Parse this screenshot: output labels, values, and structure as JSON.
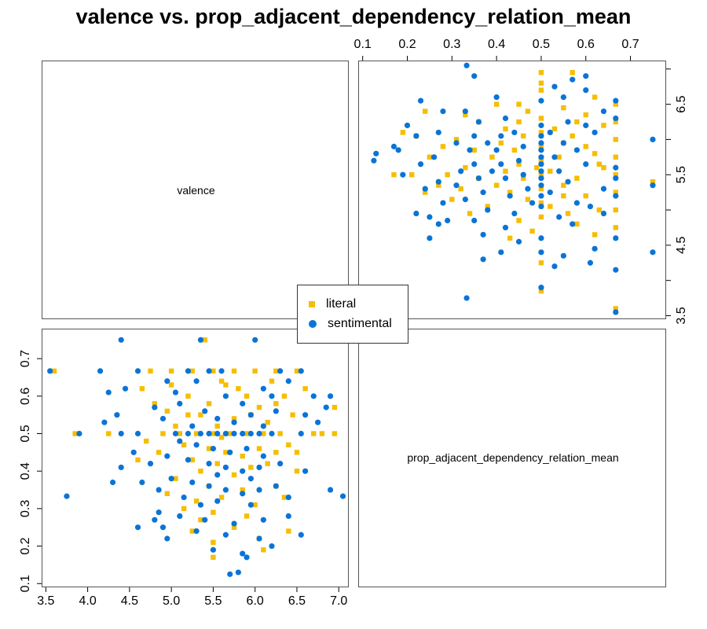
{
  "title": "valence vs. prop_adjacent_dependency_relation_mean",
  "colors": {
    "literal": "#F5BE00",
    "sentimental": "#0A74D6",
    "frame": "#555555"
  },
  "chart_data": {
    "type": "scatter",
    "title": "valence vs. prop_adjacent_dependency_relation_mean",
    "variables": [
      "valence",
      "prop_adjacent_dependency_relation_mean"
    ],
    "valence_axis": {
      "range": [
        3.45,
        7.12
      ],
      "ticks": [
        3.5,
        4.0,
        4.5,
        5.0,
        5.5,
        6.0,
        6.5,
        7.0
      ],
      "tick_labels": [
        "3.5",
        "4.0",
        "4.5",
        "5.0",
        "5.5",
        "6.0",
        "6.5",
        "7.0"
      ]
    },
    "prop_axis": {
      "range": [
        0.09,
        0.78
      ],
      "ticks": [
        0.1,
        0.2,
        0.3,
        0.4,
        0.5,
        0.6,
        0.7
      ],
      "tick_labels": [
        "0.1",
        "0.2",
        "0.3",
        "0.4",
        "0.5",
        "0.6",
        "0.7"
      ]
    },
    "upper_panel_valence_ticks": {
      "ticks": [
        3.5,
        4.5,
        5.5,
        6.5
      ],
      "tick_labels": [
        "3.5",
        "4.5",
        "5.5",
        "6.5"
      ]
    },
    "legend": {
      "position": "center",
      "entries": [
        "literal",
        "sentimental"
      ]
    },
    "grid": false,
    "series": [
      {
        "name": "literal",
        "marker": "square",
        "points": [
          [
            3.6,
            0.667
          ],
          [
            4.75,
            0.667
          ],
          [
            5.0,
            0.667
          ],
          [
            5.25,
            0.667
          ],
          [
            5.5,
            0.667
          ],
          [
            5.75,
            0.667
          ],
          [
            6.0,
            0.667
          ],
          [
            6.25,
            0.667
          ],
          [
            6.5,
            0.667
          ],
          [
            3.85,
            0.5
          ],
          [
            4.25,
            0.5
          ],
          [
            4.9,
            0.5
          ],
          [
            5.1,
            0.5
          ],
          [
            5.3,
            0.5
          ],
          [
            5.5,
            0.5
          ],
          [
            5.7,
            0.5
          ],
          [
            5.9,
            0.5
          ],
          [
            6.1,
            0.5
          ],
          [
            6.3,
            0.5
          ],
          [
            6.7,
            0.5
          ],
          [
            6.95,
            0.5
          ],
          [
            5.4,
            0.75
          ],
          [
            5.65,
            0.63
          ],
          [
            5.8,
            0.62
          ],
          [
            5.2,
            0.6
          ],
          [
            5.45,
            0.58
          ],
          [
            6.05,
            0.57
          ],
          [
            6.35,
            0.6
          ],
          [
            5.95,
            0.55
          ],
          [
            5.35,
            0.55
          ],
          [
            6.45,
            0.55
          ],
          [
            4.95,
            0.56
          ],
          [
            5.75,
            0.54
          ],
          [
            6.15,
            0.53
          ],
          [
            5.55,
            0.52
          ],
          [
            6.95,
            0.57
          ],
          [
            5.15,
            0.47
          ],
          [
            5.45,
            0.46
          ],
          [
            5.65,
            0.45
          ],
          [
            5.85,
            0.44
          ],
          [
            6.05,
            0.46
          ],
          [
            6.25,
            0.45
          ],
          [
            4.85,
            0.45
          ],
          [
            5.25,
            0.43
          ],
          [
            5.55,
            0.42
          ],
          [
            5.95,
            0.41
          ],
          [
            6.15,
            0.42
          ],
          [
            6.5,
            0.4
          ],
          [
            4.6,
            0.43
          ],
          [
            5.35,
            0.4
          ],
          [
            5.75,
            0.39
          ],
          [
            5.05,
            0.38
          ],
          [
            5.45,
            0.36
          ],
          [
            5.85,
            0.35
          ],
          [
            6.25,
            0.36
          ],
          [
            4.95,
            0.34
          ],
          [
            5.6,
            0.33
          ],
          [
            5.3,
            0.32
          ],
          [
            6.0,
            0.31
          ],
          [
            6.35,
            0.33
          ],
          [
            5.15,
            0.3
          ],
          [
            5.5,
            0.29
          ],
          [
            5.9,
            0.28
          ],
          [
            5.25,
            0.24
          ],
          [
            5.5,
            0.21
          ],
          [
            5.75,
            0.25
          ],
          [
            6.05,
            0.22
          ],
          [
            5.5,
            0.17
          ],
          [
            6.1,
            0.19
          ],
          [
            5.35,
            0.27
          ],
          [
            6.4,
            0.24
          ],
          [
            4.65,
            0.62
          ],
          [
            5.0,
            0.63
          ],
          [
            5.6,
            0.64
          ],
          [
            6.2,
            0.64
          ],
          [
            6.6,
            0.62
          ],
          [
            4.8,
            0.58
          ],
          [
            5.9,
            0.6
          ],
          [
            6.25,
            0.58
          ],
          [
            5.05,
            0.52
          ],
          [
            5.6,
            0.49
          ],
          [
            6.4,
            0.47
          ],
          [
            4.7,
            0.48
          ],
          [
            6.8,
            0.5
          ],
          [
            5.2,
            0.55
          ],
          [
            6.5,
            0.45
          ]
        ]
      },
      {
        "name": "sentimental",
        "marker": "circle",
        "points": [
          [
            3.55,
            0.667
          ],
          [
            4.15,
            0.667
          ],
          [
            4.6,
            0.667
          ],
          [
            5.2,
            0.667
          ],
          [
            5.45,
            0.667
          ],
          [
            5.6,
            0.667
          ],
          [
            6.3,
            0.667
          ],
          [
            6.55,
            0.667
          ],
          [
            6.9,
            0.6
          ],
          [
            3.9,
            0.5
          ],
          [
            4.4,
            0.5
          ],
          [
            4.6,
            0.5
          ],
          [
            5.05,
            0.5
          ],
          [
            5.2,
            0.5
          ],
          [
            5.35,
            0.5
          ],
          [
            5.45,
            0.5
          ],
          [
            5.55,
            0.5
          ],
          [
            5.65,
            0.5
          ],
          [
            5.75,
            0.5
          ],
          [
            5.85,
            0.5
          ],
          [
            5.95,
            0.5
          ],
          [
            6.05,
            0.5
          ],
          [
            6.2,
            0.5
          ],
          [
            6.55,
            0.5
          ],
          [
            4.4,
            0.75
          ],
          [
            5.35,
            0.75
          ],
          [
            6.0,
            0.75
          ],
          [
            4.25,
            0.61
          ],
          [
            4.35,
            0.55
          ],
          [
            4.2,
            0.53
          ],
          [
            4.8,
            0.57
          ],
          [
            6.7,
            0.6
          ],
          [
            6.85,
            0.57
          ],
          [
            3.75,
            0.333
          ],
          [
            7.05,
            0.333
          ],
          [
            4.4,
            0.41
          ],
          [
            6.6,
            0.55
          ],
          [
            5.3,
            0.64
          ],
          [
            5.65,
            0.6
          ],
          [
            5.85,
            0.58
          ],
          [
            6.1,
            0.62
          ],
          [
            5.1,
            0.58
          ],
          [
            5.4,
            0.56
          ],
          [
            5.95,
            0.55
          ],
          [
            6.25,
            0.56
          ],
          [
            4.9,
            0.54
          ],
          [
            5.55,
            0.54
          ],
          [
            5.75,
            0.53
          ],
          [
            6.1,
            0.52
          ],
          [
            5.25,
            0.52
          ],
          [
            5.1,
            0.48
          ],
          [
            5.3,
            0.47
          ],
          [
            5.5,
            0.46
          ],
          [
            5.7,
            0.45
          ],
          [
            5.9,
            0.46
          ],
          [
            6.1,
            0.44
          ],
          [
            4.95,
            0.44
          ],
          [
            5.2,
            0.43
          ],
          [
            5.45,
            0.42
          ],
          [
            5.65,
            0.41
          ],
          [
            5.85,
            0.4
          ],
          [
            6.05,
            0.41
          ],
          [
            6.3,
            0.42
          ],
          [
            4.75,
            0.42
          ],
          [
            5.55,
            0.39
          ],
          [
            5.95,
            0.38
          ],
          [
            5.0,
            0.38
          ],
          [
            5.25,
            0.37
          ],
          [
            5.45,
            0.36
          ],
          [
            5.65,
            0.35
          ],
          [
            5.85,
            0.34
          ],
          [
            6.05,
            0.35
          ],
          [
            6.25,
            0.36
          ],
          [
            4.85,
            0.35
          ],
          [
            4.65,
            0.37
          ],
          [
            5.15,
            0.33
          ],
          [
            5.55,
            0.32
          ],
          [
            5.95,
            0.31
          ],
          [
            6.4,
            0.33
          ],
          [
            5.35,
            0.31
          ],
          [
            4.85,
            0.29
          ],
          [
            5.1,
            0.28
          ],
          [
            5.4,
            0.27
          ],
          [
            5.75,
            0.26
          ],
          [
            6.1,
            0.27
          ],
          [
            6.4,
            0.28
          ],
          [
            4.9,
            0.25
          ],
          [
            5.3,
            0.24
          ],
          [
            5.65,
            0.23
          ],
          [
            6.05,
            0.22
          ],
          [
            6.55,
            0.23
          ],
          [
            4.95,
            0.22
          ],
          [
            5.5,
            0.19
          ],
          [
            5.85,
            0.18
          ],
          [
            6.2,
            0.2
          ],
          [
            5.7,
            0.125
          ],
          [
            5.8,
            0.13
          ],
          [
            5.9,
            0.17
          ],
          [
            4.6,
            0.25
          ],
          [
            4.8,
            0.27
          ],
          [
            4.45,
            0.62
          ],
          [
            4.95,
            0.64
          ],
          [
            6.4,
            0.64
          ],
          [
            6.75,
            0.53
          ],
          [
            4.55,
            0.45
          ],
          [
            6.6,
            0.4
          ],
          [
            4.3,
            0.37
          ],
          [
            6.9,
            0.35
          ],
          [
            5.05,
            0.61
          ],
          [
            6.2,
            0.6
          ]
        ]
      }
    ]
  }
}
